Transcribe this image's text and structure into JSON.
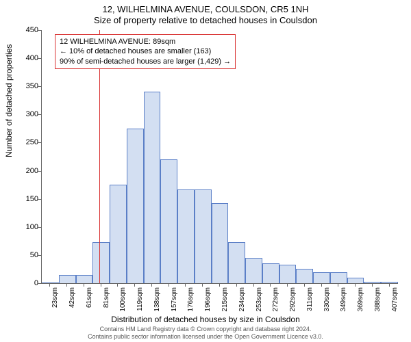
{
  "header": {
    "line1": "12, WILHELMINA AVENUE, COULSDON, CR5 1NH",
    "line2": "Size of property relative to detached houses in Coulsdon"
  },
  "chart": {
    "type": "histogram",
    "ylabel": "Number of detached properties",
    "xlabel": "Distribution of detached houses by size in Coulsdon",
    "ylim": [
      0,
      450
    ],
    "ytick_step": 50,
    "yticks": [
      0,
      50,
      100,
      150,
      200,
      250,
      300,
      350,
      400,
      450
    ],
    "xtick_labels": [
      "23sqm",
      "42sqm",
      "61sqm",
      "81sqm",
      "100sqm",
      "119sqm",
      "138sqm",
      "157sqm",
      "176sqm",
      "196sqm",
      "215sqm",
      "234sqm",
      "253sqm",
      "272sqm",
      "292sqm",
      "311sqm",
      "330sqm",
      "349sqm",
      "369sqm",
      "388sqm",
      "407sqm"
    ],
    "values": [
      0,
      15,
      15,
      73,
      175,
      275,
      340,
      220,
      167,
      167,
      142,
      73,
      45,
      35,
      33,
      25,
      20,
      20,
      10,
      3,
      3
    ],
    "bar_fill": "#d3dff2",
    "bar_stroke": "#5b7fc7",
    "bar_width_ratio": 1.0,
    "background_color": "#ffffff",
    "axis_color": "#666666",
    "reference_line": {
      "x_index": 3.4,
      "color": "#d93030",
      "label_value": "89sqm"
    }
  },
  "annotation": {
    "border_color": "#d93030",
    "lines": [
      "12 WILHELMINA AVENUE: 89sqm",
      "← 10% of detached houses are smaller (163)",
      "90% of semi-detached houses are larger (1,429) →"
    ]
  },
  "footer": {
    "line1": "Contains HM Land Registry data © Crown copyright and database right 2024.",
    "line2": "Contains public sector information licensed under the Open Government Licence v3.0."
  }
}
